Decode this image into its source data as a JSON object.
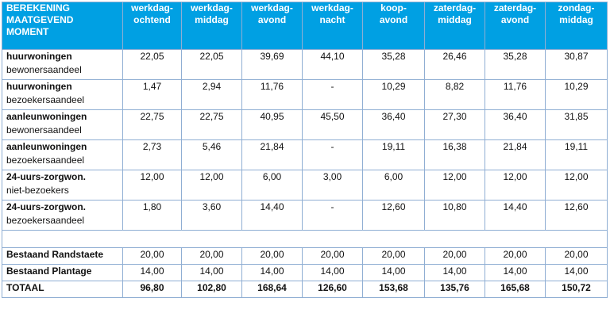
{
  "table": {
    "header": {
      "label_lines": [
        "BEREKENING",
        "MAATGEVEND",
        "MOMENT"
      ],
      "columns": [
        [
          "werkdag-",
          "ochtend"
        ],
        [
          "werkdag-",
          "middag"
        ],
        [
          "werkdag-",
          "avond"
        ],
        [
          "werkdag-",
          "nacht"
        ],
        [
          "koop-",
          "avond"
        ],
        [
          "zaterdag-",
          "middag"
        ],
        [
          "zaterdag-",
          "avond"
        ],
        [
          "zondag-",
          "middag"
        ]
      ]
    },
    "rows": [
      {
        "main": "huurwoningen",
        "sub": "bewonersaandeel",
        "values": [
          "22,05",
          "22,05",
          "39,69",
          "44,10",
          "35,28",
          "26,46",
          "35,28",
          "30,87"
        ]
      },
      {
        "main": "huurwoningen",
        "sub": "bezoekersaandeel",
        "values": [
          "1,47",
          "2,94",
          "11,76",
          "-",
          "10,29",
          "8,82",
          "11,76",
          "10,29"
        ]
      },
      {
        "main": "aanleunwoningen",
        "sub": "bewonersaandeel",
        "values": [
          "22,75",
          "22,75",
          "40,95",
          "45,50",
          "36,40",
          "27,30",
          "36,40",
          "31,85"
        ]
      },
      {
        "main": "aanleunwoningen",
        "sub": "bezoekersaandeel",
        "values": [
          "2,73",
          "5,46",
          "21,84",
          "-",
          "19,11",
          "16,38",
          "21,84",
          "19,11"
        ]
      },
      {
        "main": "24-uurs-zorgwon.",
        "sub": "niet-bezoekers",
        "values": [
          "12,00",
          "12,00",
          "6,00",
          "3,00",
          "6,00",
          "12,00",
          "12,00",
          "12,00"
        ]
      },
      {
        "main": "24-uurs-zorgwon.",
        "sub": "bezoekersaandeel",
        "values": [
          "1,80",
          "3,60",
          "14,40",
          "-",
          "12,60",
          "10,80",
          "14,40",
          "12,60"
        ]
      }
    ],
    "existing": [
      {
        "main": "Bestaand Randstaete",
        "values": [
          "20,00",
          "20,00",
          "20,00",
          "20,00",
          "20,00",
          "20,00",
          "20,00",
          "20,00"
        ]
      },
      {
        "main": "Bestaand Plantage",
        "values": [
          "14,00",
          "14,00",
          "14,00",
          "14,00",
          "14,00",
          "14,00",
          "14,00",
          "14,00"
        ]
      }
    ],
    "total": {
      "label": "TOTAAL",
      "values": [
        "96,80",
        "102,80",
        "168,64",
        "126,60",
        "153,68",
        "135,76",
        "165,68",
        "150,72"
      ]
    },
    "colors": {
      "header_bg": "#00a0e3",
      "header_text": "#ffffff",
      "border": "#8faed3"
    }
  }
}
